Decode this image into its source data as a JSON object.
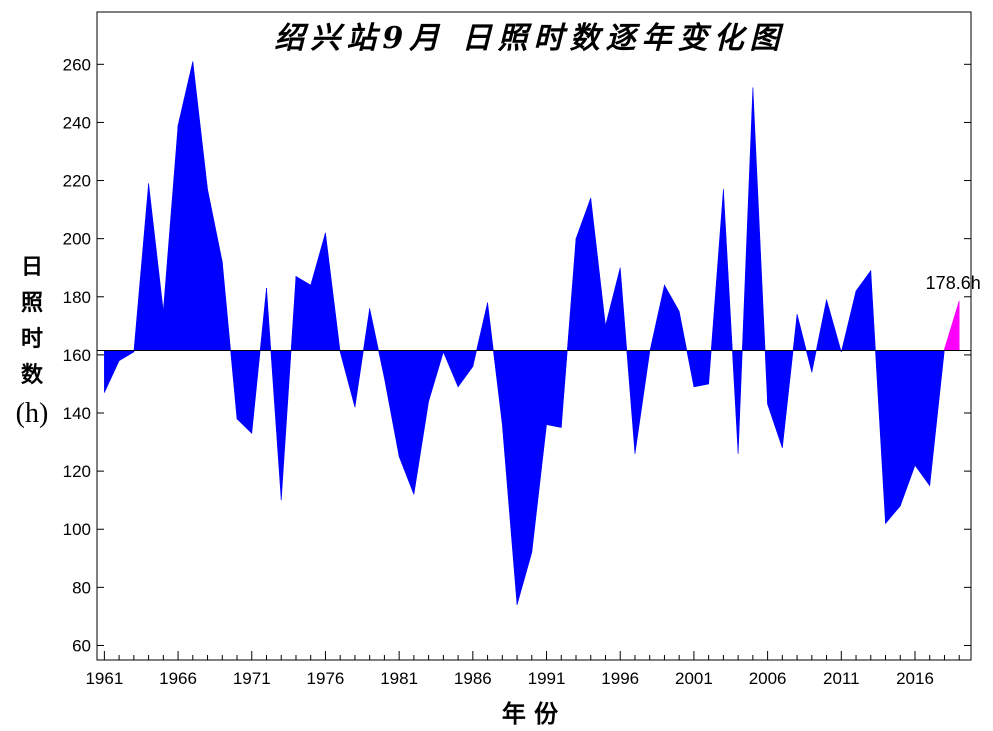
{
  "chart_data": {
    "type": "area",
    "title": "绍兴站9月 日照时数逐年变化图",
    "xlabel": "年 份",
    "ylabel_chars": [
      "日",
      "照",
      "时",
      "数"
    ],
    "ylabel_unit": "(h)",
    "ylim": [
      55,
      278
    ],
    "xlim": [
      1960.5,
      2019.8
    ],
    "baseline": 161.5,
    "yticks": [
      60,
      80,
      100,
      120,
      140,
      160,
      180,
      200,
      220,
      240,
      260
    ],
    "xticks": [
      1961,
      1966,
      1971,
      1976,
      1981,
      1986,
      1991,
      1996,
      2001,
      2006,
      2011,
      2016
    ],
    "grid": false,
    "colors": {
      "fill": "#0000ff",
      "highlight": "#ff00ff",
      "baseline": "#000000"
    },
    "annotation": {
      "text": "178.6h",
      "year": 2019,
      "value": 178.6
    },
    "series": [
      {
        "x": [
          1961,
          1962,
          1963,
          1964,
          1965,
          1966,
          1967,
          1968,
          1969,
          1970,
          1971,
          1972,
          1973,
          1974,
          1975,
          1976,
          1977,
          1978,
          1979,
          1980,
          1981,
          1982,
          1983,
          1984,
          1985,
          1986,
          1987,
          1988,
          1989,
          1990,
          1991,
          1992,
          1993,
          1994,
          1995,
          1996,
          1997,
          1998,
          1999,
          2000,
          2001,
          2002,
          2003,
          2004,
          2005,
          2006,
          2007,
          2008,
          2009,
          2010,
          2011,
          2012,
          2013,
          2014,
          2015,
          2016,
          2017,
          2018,
          2019
        ],
        "values": [
          147,
          158,
          161,
          219,
          175,
          239,
          261,
          217,
          192,
          138,
          133,
          183,
          110,
          187,
          184,
          202,
          161,
          142,
          176,
          152,
          125,
          112,
          144,
          161,
          149,
          156,
          178,
          136,
          74,
          92,
          136,
          135,
          200,
          214,
          170,
          190,
          126,
          161,
          184,
          175,
          149,
          150,
          217,
          126,
          252,
          143,
          128,
          174,
          154,
          179,
          161,
          182,
          189,
          102,
          108,
          122,
          115,
          162,
          178.6
        ]
      }
    ]
  }
}
